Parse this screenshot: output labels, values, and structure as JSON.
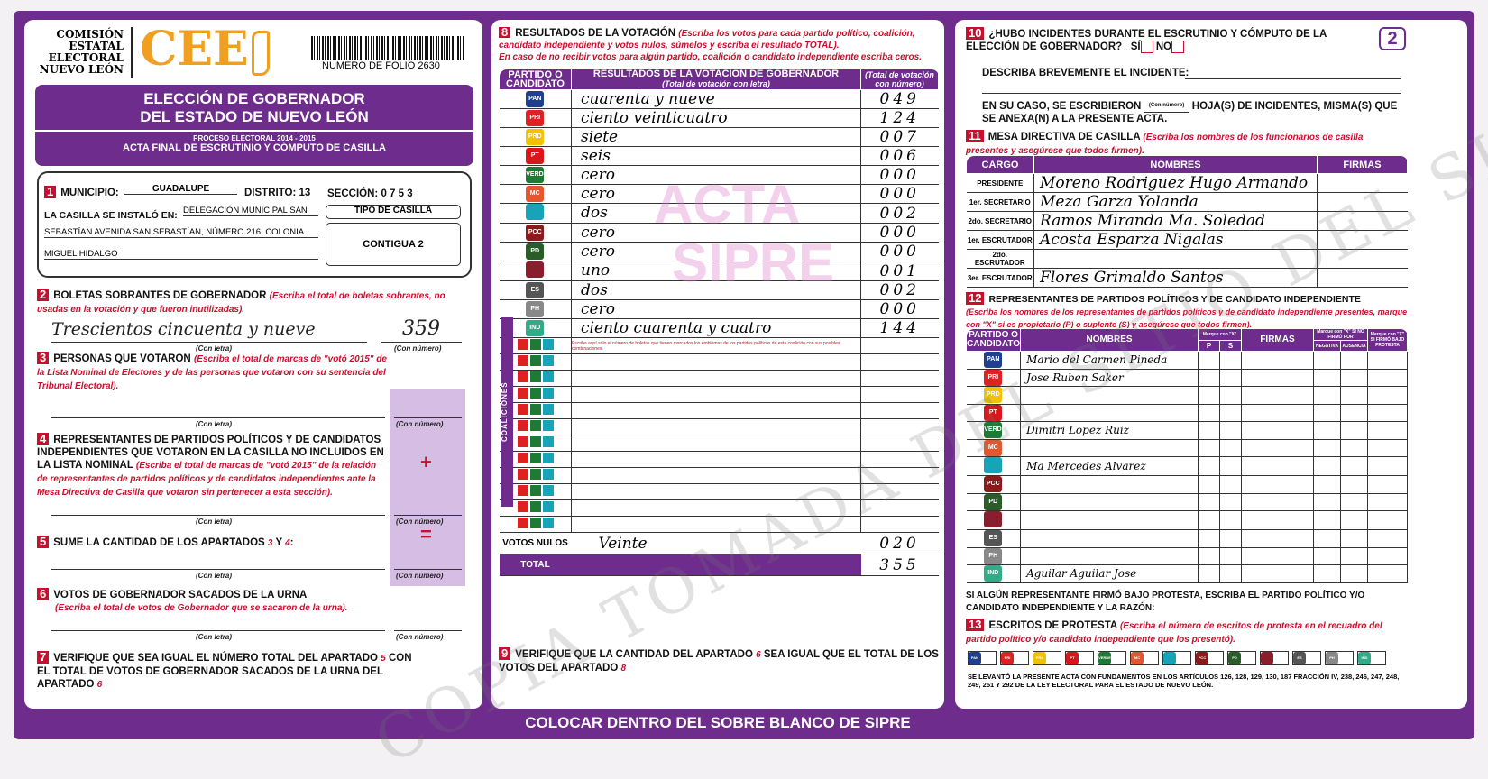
{
  "header": {
    "org_lines": [
      "COMISIÓN",
      "ESTATAL",
      "ELECTORAL",
      "NUEVO LEÓN"
    ],
    "logo_text": "CEE",
    "folio": "NUMERO DE FOLIO 2630",
    "title": [
      "ELECCIÓN DE GOBERNADOR",
      "DEL ESTADO DE NUEVO LEÓN"
    ],
    "process": "PROCESO ELECTORAL 2014 - 2015",
    "subtitle": "ACTA FINAL DE ESCRUTINIO Y CÓMPUTO DE CASILLA",
    "page_number": "2"
  },
  "s1": {
    "num": "1",
    "municipio_label": "MUNICIPIO:",
    "municipio": "GUADALUPE",
    "distrito_label": "DISTRITO:",
    "distrito": "13",
    "seccion_label": "SECCIÓN:",
    "seccion": "0 7 5 3",
    "instalo_label": "LA CASILLA SE INSTALÓ EN:",
    "address": [
      "DELEGACIÓN MUNICIPAL SAN",
      "SEBASTÍAN AVENIDA SAN SEBASTÍAN, NÚMERO 216, COLONIA",
      "MIGUEL HIDALGO"
    ],
    "tipo_label": "TIPO DE CASILLA",
    "tipo": "CONTIGUA 2"
  },
  "labels": {
    "con_letra": "(Con letra)",
    "con_numero": "(Con número)",
    "plus": "+",
    "equals": "="
  },
  "s2": {
    "num": "2",
    "title": "BOLETAS SOBRANTES DE GOBERNADOR",
    "note": "(Escriba el total de boletas sobrantes, no usadas en la votación y que fueron inutilizadas).",
    "letra": "Trescientos cincuenta y nueve",
    "numero": "359"
  },
  "s3": {
    "num": "3",
    "title": "PERSONAS QUE VOTARON",
    "note": "(Escriba el total de marcas de \"votó 2015\" de la Lista Nominal de Electores y de las personas que votaron con su sentencia del Tribunal Electoral)."
  },
  "s4": {
    "num": "4",
    "title": "REPRESENTANTES DE PARTIDOS POLÍTICOS Y DE CANDIDATOS INDEPENDIENTES QUE VOTARON EN LA CASILLA NO INCLUIDOS EN LA LISTA NOMINAL",
    "note": "(Escriba el total de marcas de \"votó 2015\" de la relación de representantes de partidos políticos y de candidatos independientes ante la Mesa Directiva de Casilla que votaron sin pertenecer a esta sección)."
  },
  "s5": {
    "num": "5",
    "title": "SUME LA CANTIDAD DE LOS APARTADOS",
    "a": "3",
    "y": "Y",
    "b": "4"
  },
  "s6": {
    "num": "6",
    "title": "VOTOS DE GOBERNADOR SACADOS DE LA URNA",
    "note": "(Escriba el total de votos de Gobernador que se sacaron de la urna)."
  },
  "s7": {
    "num": "7",
    "text1": "VERIFIQUE QUE SEA IGUAL EL NÚMERO TOTAL DEL APARTADO",
    "a": "5",
    "text2": "CON EL TOTAL DE VOTOS DE GOBERNADOR SACADOS DE LA URNA DEL APARTADO",
    "b": "6"
  },
  "s8": {
    "num": "8",
    "title": "RESULTADOS DE LA VOTACIÓN",
    "note": "(Escriba los votos para cada partido político, coalición, candidato independiente y votos nulos, súmelos y escriba el resultado TOTAL).",
    "note2": "En caso de no recibir votos para algún partido, coalición o candidato independiente escriba ceros.",
    "col_party": "PARTIDO O CANDIDATO",
    "col_result": "RESULTADOS DE LA VOTACIÓN DE GOBERNADOR",
    "col_result_sub": "(Total de votación con letra)",
    "col_num": "(Total de votación con número)",
    "rows": [
      {
        "party": "PAN",
        "color": "#1f3f8f",
        "letra": "cuarenta y nueve",
        "numero": "049"
      },
      {
        "party": "PRI",
        "color": "#d22",
        "letra": "ciento veinticuatro",
        "numero": "124"
      },
      {
        "party": "PRD",
        "color": "#f2c200",
        "letra": "siete",
        "numero": "007"
      },
      {
        "party": "PT",
        "color": "#d8161b",
        "letra": "seis",
        "numero": "006"
      },
      {
        "party": "VERDE",
        "color": "#1e7a34",
        "letra": "cero",
        "numero": "000"
      },
      {
        "party": "MC",
        "color": "#e4572e",
        "letra": "cero",
        "numero": "000"
      },
      {
        "party": "alianza",
        "color": "#17a3b8",
        "letra": "dos",
        "numero": "002"
      },
      {
        "party": "PCC",
        "color": "#8b1a1a",
        "letra": "cero",
        "numero": "000"
      },
      {
        "party": "PD",
        "color": "#2b5d2b",
        "letra": "cero",
        "numero": "000"
      },
      {
        "party": "morena",
        "color": "#8b1e2d",
        "letra": "uno",
        "numero": "001"
      },
      {
        "party": "ES",
        "color": "#555",
        "letra": "dos",
        "numero": "002"
      },
      {
        "party": "PH",
        "color": "#888",
        "letra": "cero",
        "numero": "000"
      },
      {
        "party": "IND",
        "color": "#3a8",
        "letra": "ciento cuarenta y cuatro",
        "numero": "144"
      }
    ],
    "coalition_note": "Escriba aquí sólo el número de boletas que tienen marcados los emblemas de los partidos políticos de esta coalición con sus posibles combinaciones.",
    "coalition_label": "COALICIONES",
    "coalitions": 12,
    "nulos_label": "VOTOS NULOS",
    "nulos_letra": "Veinte",
    "nulos_numero": "020",
    "total_label": "TOTAL",
    "total_numero": "355",
    "stamp": [
      "ACTA",
      "SIPRE"
    ]
  },
  "s9": {
    "num": "9",
    "text1": "VERIFIQUE QUE LA CANTIDAD DEL APARTADO",
    "a": "6",
    "text2": "SEA IGUAL QUE EL TOTAL DE LOS VOTOS DEL APARTADO",
    "b": "8"
  },
  "s10": {
    "num": "10",
    "q": "¿HUBO INCIDENTES DURANTE EL ESCRUTINIO Y CÓMPUTO DE LA ELECCIÓN DE GOBERNADOR?",
    "si": "SÍ",
    "no": "NO",
    "describe": "DESCRIBA BREVEMENTE EL INCIDENTE:",
    "hojas1": "EN SU CASO, SE ESCRIBIERON",
    "hojas_sub": "(Con número)",
    "hojas2": "HOJA(S) DE INCIDENTES, MISMA(S) QUE SE ANEXA(N) A LA PRESENTE ACTA."
  },
  "s11": {
    "num": "11",
    "title": "MESA DIRECTIVA DE CASILLA",
    "note": "(Escriba los nombres de los funcionarios de casilla presentes y asegúrese que todos firmen).",
    "col_cargo": "CARGO",
    "col_nombres": "NOMBRES",
    "col_firmas": "FIRMAS",
    "rows": [
      {
        "cargo": "PRESIDENTE",
        "nombre": "Moreno Rodriguez Hugo Armando"
      },
      {
        "cargo": "1er. SECRETARIO",
        "nombre": "Meza Garza Yolanda"
      },
      {
        "cargo": "2do. SECRETARIO",
        "nombre": "Ramos Miranda Ma. Soledad"
      },
      {
        "cargo": "1er. ESCRUTADOR",
        "nombre": "Acosta Esparza Nigalas"
      },
      {
        "cargo": "2do. ESCRUTADOR",
        "nombre": ""
      },
      {
        "cargo": "3er. ESCRUTADOR",
        "nombre": "Flores Grimaldo Santos"
      }
    ]
  },
  "s12": {
    "num": "12",
    "title": "REPRESENTANTES DE PARTIDOS POLÍTICOS Y DE CANDIDATO INDEPENDIENTE",
    "note": "(Escriba los nombres de los representantes de partidos políticos y de candidato independiente presentes, marque con \"X\" si es propietario (P) o suplente (S) y asegúrese que todos firmen).",
    "col_party": "PARTIDO O CANDIDATO",
    "col_nombres": "NOMBRES",
    "col_marque": "Marque con \"X\"",
    "col_p": "P",
    "col_s": "S",
    "col_firmas": "FIRMAS",
    "col_protesta": "Marque con \"X\" SI NO FIRMÓ POR",
    "col_negativa": "NEGATIVA",
    "col_ausencia": "AUSENCIA",
    "col_bajo": "Marque con \"X\" SI FIRMÓ BAJO PROTESTA",
    "names": [
      "Mario del Carmen Pineda",
      "Jose Ruben Saker",
      "",
      "",
      "Dimitri Lopez Ruiz",
      "",
      "Ma Mercedes Alvarez",
      "",
      "",
      "",
      "",
      "",
      "Aguilar Aguilar Jose"
    ],
    "protest_text": "SI ALGÚN REPRESENTANTE FIRMÓ BAJO PROTESTA, ESCRIBA EL PARTIDO POLÍTICO Y/O CANDIDATO INDEPENDIENTE Y LA RAZÓN:"
  },
  "s13": {
    "num": "13",
    "title": "ESCRITOS DE PROTESTA",
    "note": "(Escriba el número de escritos de protesta en el recuadro del partido político y/o candidato independiente que los presentó).",
    "legal": "SE LEVANTÓ LA PRESENTE ACTA CON FUNDAMENTOS EN LOS ARTÍCULOS 126, 128, 129, 130, 187 FRACCIÓN IV, 238, 246, 247, 248, 249, 251 Y 292 DE LA LEY ELECTORAL PARA EL ESTADO DE NUEVO LEÓN."
  },
  "footer": "COLOCAR DENTRO DEL SOBRE BLANCO DE SIPRE",
  "watermark": "COPIA TOMADA DEL SITIO DEL SIPRE",
  "colors": {
    "purple": "#6e2c8c",
    "red": "#c8102e",
    "orange": "#f0a020"
  }
}
